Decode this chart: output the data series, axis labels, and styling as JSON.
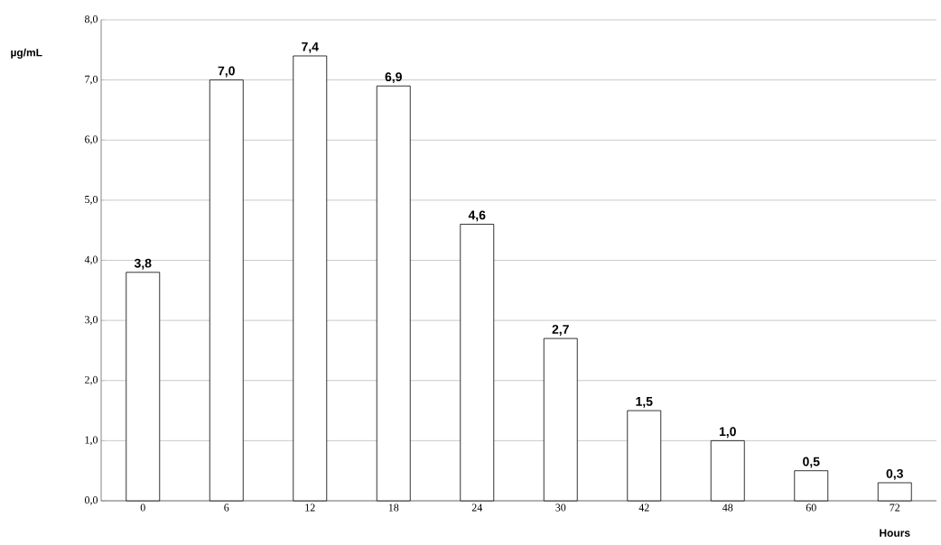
{
  "chart_data": {
    "type": "bar",
    "ylabel": "µg/mL",
    "xlabel": "Hours",
    "categories": [
      "0",
      "6",
      "12",
      "18",
      "24",
      "30",
      "42",
      "48",
      "60",
      "72"
    ],
    "values": [
      3.8,
      7.0,
      7.4,
      6.9,
      4.6,
      2.7,
      1.5,
      1.0,
      0.5,
      0.3
    ],
    "value_labels": [
      "3,8",
      "7,0",
      "7,4",
      "6,9",
      "4,6",
      "2,7",
      "1,5",
      "1,0",
      "0,5",
      "0,3"
    ],
    "color": "#ffffff",
    "ylim": [
      0,
      8
    ],
    "yticks": [
      {
        "value": 0,
        "label": "0,0"
      },
      {
        "value": 1,
        "label": "1,0"
      },
      {
        "value": 2,
        "label": "2,0"
      },
      {
        "value": 3,
        "label": "3,0"
      },
      {
        "value": 4,
        "label": "4,0"
      },
      {
        "value": 5,
        "label": "5,0"
      },
      {
        "value": 6,
        "label": "6,0"
      },
      {
        "value": 7,
        "label": "7,0"
      },
      {
        "value": 8,
        "label": "8,0"
      }
    ],
    "grid": "y"
  }
}
